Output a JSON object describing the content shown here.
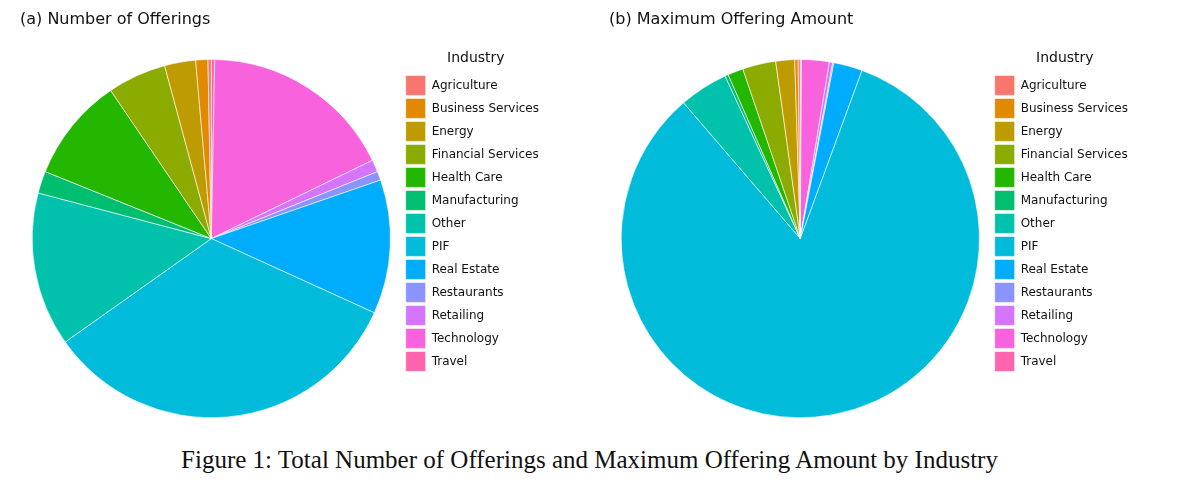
{
  "caption": "Figure 1: Total Number of Offerings and Maximum Offering Amount by Industry",
  "chart_data": [
    {
      "type": "pie",
      "title": "(a) Number of Offerings",
      "legend": "right",
      "legend_title": "Industry",
      "categories": [
        "Agriculture",
        "Business Services",
        "Energy",
        "Financial Services",
        "Health Care",
        "Manufacturing",
        "Other",
        "PIF",
        "Real Estate",
        "Restaurants",
        "Retailing",
        "Technology",
        "Travel"
      ],
      "values": [
        0.3,
        1.1,
        2.8,
        5.3,
        9.4,
        2.0,
        13.9,
        33.4,
        12.1,
        0.8,
        1.1,
        17.5,
        0.3
      ],
      "colors": [
        "#F8766D",
        "#E18A00",
        "#BE9C00",
        "#8CAB00",
        "#24B700",
        "#00BE70",
        "#00C1AB",
        "#00BBDA",
        "#00ACFC",
        "#8B93FF",
        "#D575FE",
        "#F962DD",
        "#FF65AC"
      ]
    },
    {
      "type": "pie",
      "title": "(b) Maximum Offering Amount",
      "legend": "right",
      "legend_title": "Industry",
      "categories": [
        "Agriculture",
        "Business Services",
        "Energy",
        "Financial Services",
        "Health Care",
        "Manufacturing",
        "Other",
        "PIF",
        "Real Estate",
        "Restaurants",
        "Retailing",
        "Technology",
        "Travel"
      ],
      "values": [
        0.2,
        0.3,
        1.7,
        3.0,
        1.4,
        0.3,
        4.4,
        83.1,
        2.6,
        0.1,
        0.3,
        2.5,
        0.1
      ],
      "colors": [
        "#F8766D",
        "#E18A00",
        "#BE9C00",
        "#8CAB00",
        "#24B700",
        "#00BE70",
        "#00C1AB",
        "#00BBDA",
        "#00ACFC",
        "#8B93FF",
        "#D575FE",
        "#F962DD",
        "#FF65AC"
      ]
    }
  ]
}
